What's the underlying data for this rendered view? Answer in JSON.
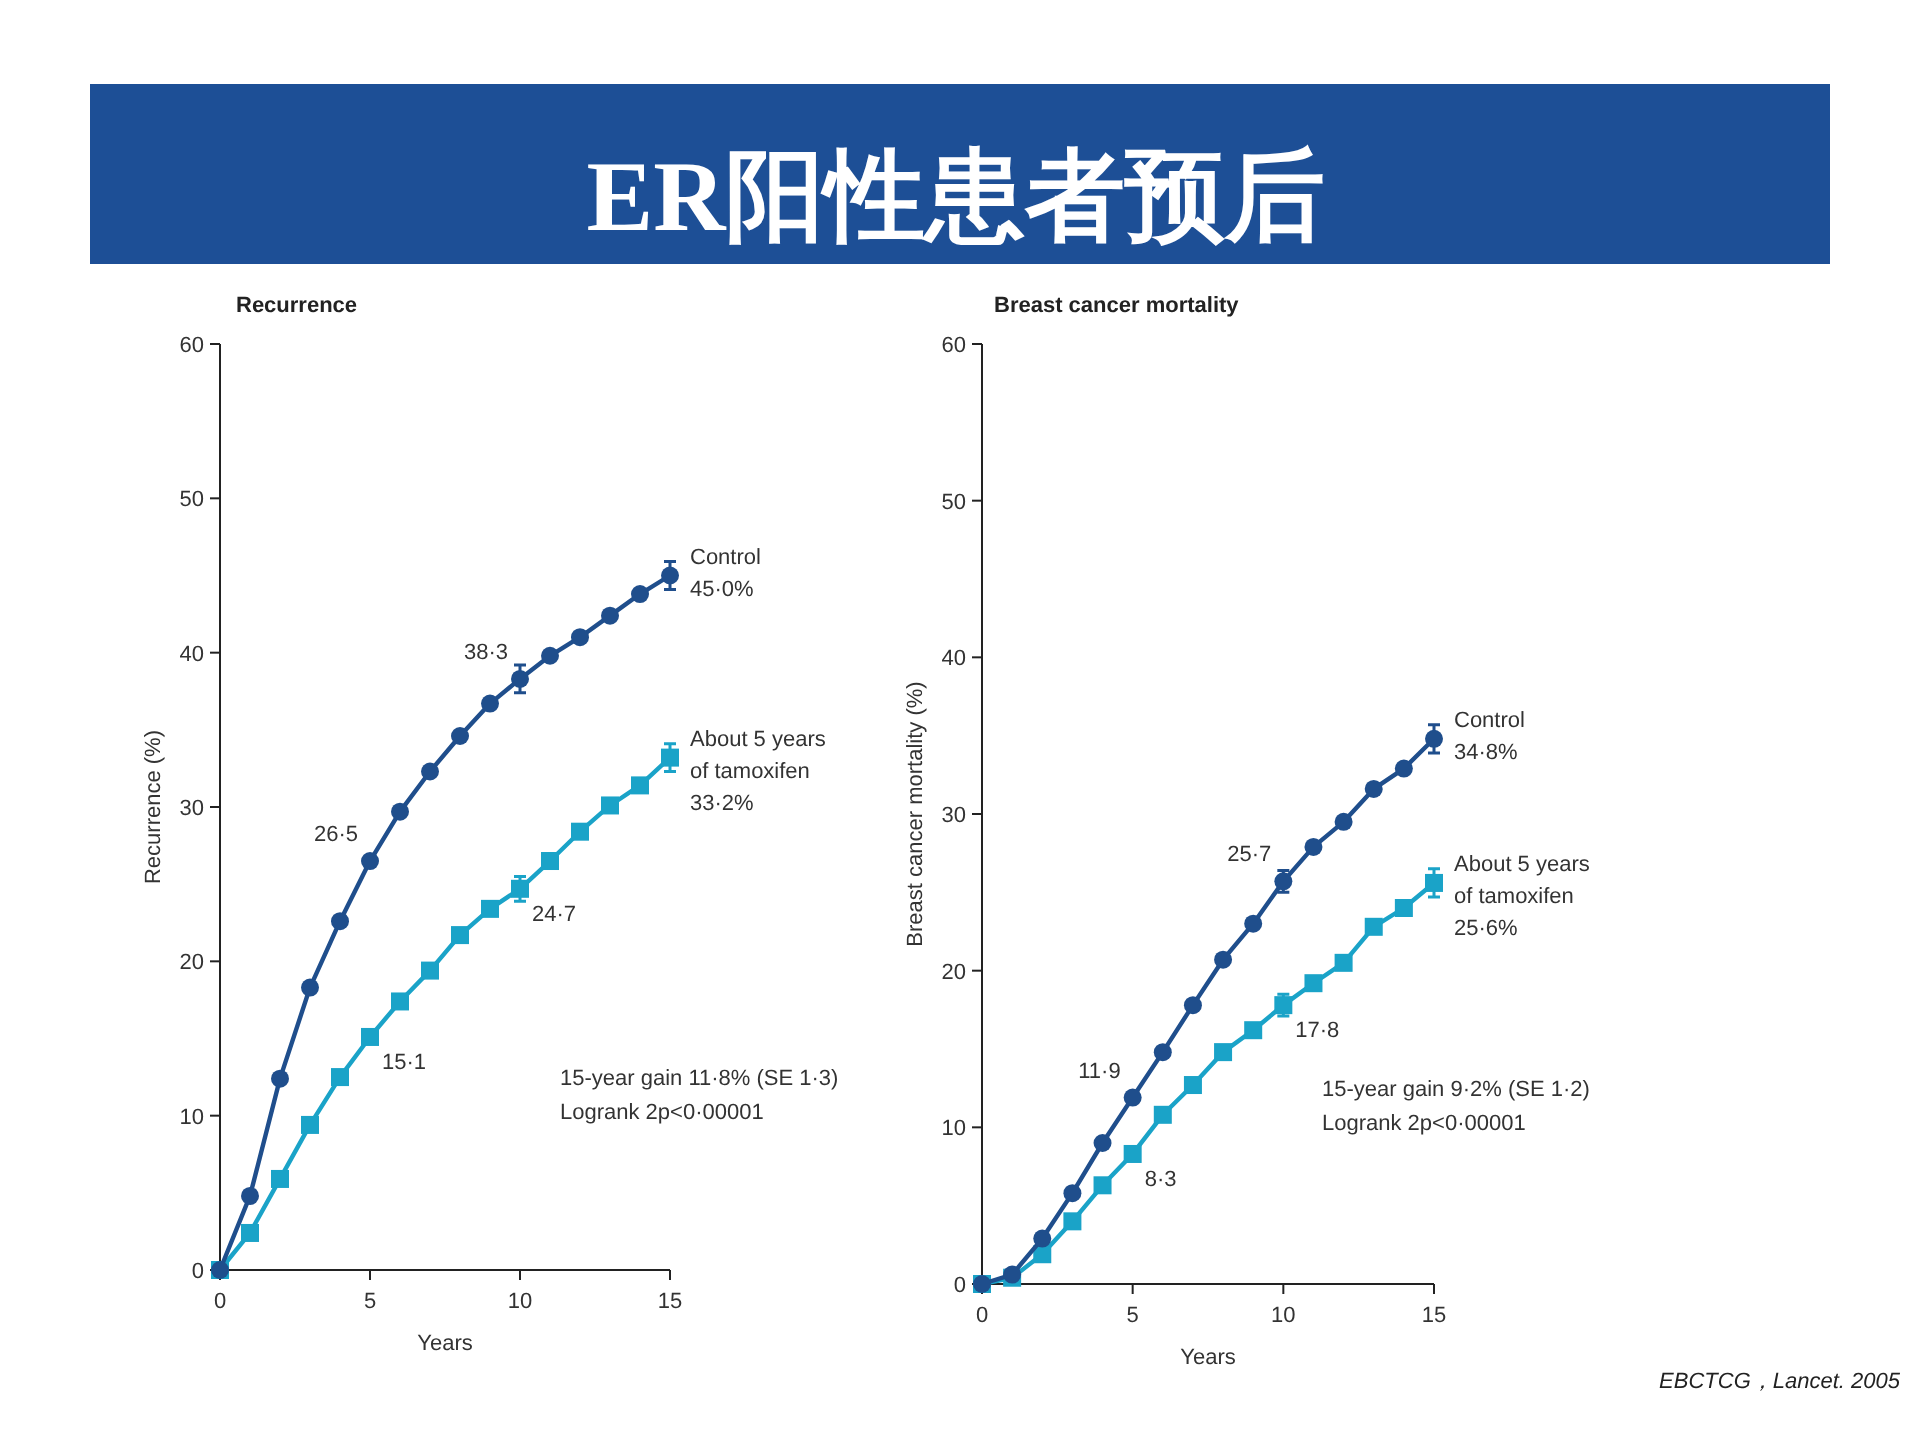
{
  "chart_data": [
    {
      "type": "line",
      "title": "ER阳性患者预后",
      "subtitle": "Recurrence",
      "xlabel": "Years",
      "ylabel": "Recurrence (%)",
      "x": [
        0,
        1,
        2,
        3,
        4,
        5,
        6,
        7,
        8,
        9,
        10,
        11,
        12,
        13,
        14,
        15
      ],
      "xlim": [
        0,
        15
      ],
      "ylim": [
        0,
        60
      ],
      "xticks": [
        0,
        5,
        10,
        15
      ],
      "yticks": [
        0,
        10,
        20,
        30,
        40,
        50,
        60
      ],
      "series": [
        {
          "name": "Control",
          "color": "#1f4e8c",
          "marker": "circle",
          "values": [
            0,
            4.8,
            12.4,
            18.3,
            22.6,
            26.5,
            29.7,
            32.3,
            34.6,
            36.7,
            38.3,
            39.8,
            41.0,
            42.4,
            43.8,
            45.0
          ],
          "errors": [
            null,
            null,
            null,
            null,
            null,
            null,
            null,
            null,
            null,
            null,
            0.9,
            null,
            null,
            null,
            null,
            0.9
          ]
        },
        {
          "name": "About 5 years of tamoxifen",
          "color": "#1aa3c8",
          "marker": "square",
          "values": [
            0,
            2.4,
            5.9,
            9.4,
            12.5,
            15.1,
            17.4,
            19.4,
            21.7,
            23.4,
            24.7,
            26.5,
            28.4,
            30.1,
            31.4,
            33.2
          ],
          "errors": [
            null,
            null,
            null,
            null,
            null,
            null,
            null,
            null,
            null,
            null,
            0.8,
            null,
            null,
            null,
            null,
            0.9
          ]
        }
      ],
      "annotations": [
        {
          "text": "26·5",
          "x": 5,
          "y": 26.5
        },
        {
          "text": "38·3",
          "x": 10,
          "y": 38.3
        },
        {
          "text": "15·1",
          "x": 5,
          "y": 15.1
        },
        {
          "text": "24·7",
          "x": 10,
          "y": 24.7
        },
        {
          "text": "45·0%",
          "x": 15,
          "y": 45.0
        },
        {
          "text": "33·2%",
          "x": 15,
          "y": 33.2
        },
        "15-year gain 11·8% (SE 1·3)",
        "Logrank 2p<0·00001"
      ]
    },
    {
      "type": "line",
      "title": "Breast cancer mortality",
      "xlabel": "Years",
      "ylabel": "Breast cancer mortality (%)",
      "x": [
        0,
        1,
        2,
        3,
        4,
        5,
        6,
        7,
        8,
        9,
        10,
        11,
        12,
        13,
        14,
        15
      ],
      "xlim": [
        0,
        15
      ],
      "ylim": [
        0,
        60
      ],
      "xticks": [
        0,
        5,
        10,
        15
      ],
      "yticks": [
        0,
        10,
        20,
        30,
        40,
        50,
        60
      ],
      "series": [
        {
          "name": "Control",
          "color": "#1f4e8c",
          "marker": "circle",
          "values": [
            0,
            0.6,
            2.9,
            5.8,
            9.0,
            11.9,
            14.8,
            17.8,
            20.7,
            23.0,
            25.7,
            27.9,
            29.5,
            31.6,
            32.9,
            34.8
          ],
          "errors": [
            null,
            null,
            null,
            null,
            null,
            null,
            null,
            null,
            null,
            null,
            0.7,
            null,
            null,
            null,
            null,
            0.9
          ]
        },
        {
          "name": "About 5 years of tamoxifen",
          "color": "#1aa3c8",
          "marker": "square",
          "values": [
            0,
            0.4,
            1.9,
            4.0,
            6.3,
            8.3,
            10.8,
            12.7,
            14.8,
            16.2,
            17.8,
            19.2,
            20.5,
            22.8,
            24.0,
            25.6
          ],
          "errors": [
            null,
            null,
            null,
            null,
            null,
            null,
            null,
            null,
            null,
            null,
            0.7,
            null,
            null,
            null,
            null,
            0.9
          ]
        }
      ],
      "annotations": [
        {
          "text": "11·9",
          "x": 5,
          "y": 11.9
        },
        {
          "text": "25·7",
          "x": 10,
          "y": 25.7
        },
        {
          "text": "8·3",
          "x": 5,
          "y": 8.3
        },
        {
          "text": "17·8",
          "x": 10,
          "y": 17.8
        },
        {
          "text": "34·8%",
          "x": 15,
          "y": 34.8
        },
        {
          "text": "25·6%",
          "x": 15,
          "y": 25.6
        },
        "15-year gain 9·2% (SE 1·2)",
        "Logrank 2p<0·00001",
        "EBCTCG，Lancet. 2005"
      ]
    }
  ]
}
